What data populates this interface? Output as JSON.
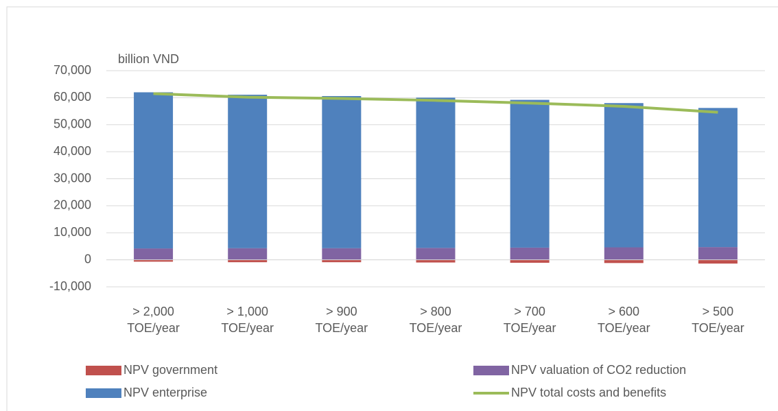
{
  "chart_data": {
    "type": "stacked-bar-line",
    "y_label": "billion VND",
    "categories": [
      "> 2,000 TOE/year",
      "> 1,000 TOE/year",
      "> 900 TOE/year",
      "> 800 TOE/year",
      "> 700 TOE/year",
      "> 600 TOE/year",
      "> 500 TOE/year"
    ],
    "series": [
      {
        "name": "NPV government",
        "type": "bar",
        "color": "#c0504d",
        "values": [
          -700,
          -900,
          -900,
          -1000,
          -1100,
          -1200,
          -1400
        ]
      },
      {
        "name": "NPV valuation of CO2 reduction",
        "type": "bar",
        "color": "#8064a2",
        "values": [
          4200,
          4300,
          4300,
          4400,
          4500,
          4600,
          4700
        ]
      },
      {
        "name": "NPV enterprise",
        "type": "bar",
        "color": "#4f81bd",
        "values": [
          57800,
          56800,
          56300,
          55600,
          54700,
          53400,
          51500
        ]
      },
      {
        "name": "NPV total costs and benefits",
        "type": "line",
        "color": "#9bbb59",
        "values": [
          61500,
          60200,
          59700,
          59000,
          58000,
          56800,
          54600
        ]
      }
    ],
    "ylim": [
      -10000,
      70000
    ],
    "yticks": [
      {
        "value": -10000,
        "label": "-10,000"
      },
      0,
      {
        "value": 10000,
        "label": "10,000"
      },
      {
        "value": 20000,
        "label": "20,000"
      },
      {
        "value": 30000,
        "label": "30,000"
      },
      {
        "value": 40000,
        "label": "40,000"
      },
      {
        "value": 50000,
        "label": "50,000"
      },
      {
        "value": 60000,
        "label": "60,000"
      },
      {
        "value": 70000,
        "label": "70,000"
      }
    ],
    "grid": true
  }
}
